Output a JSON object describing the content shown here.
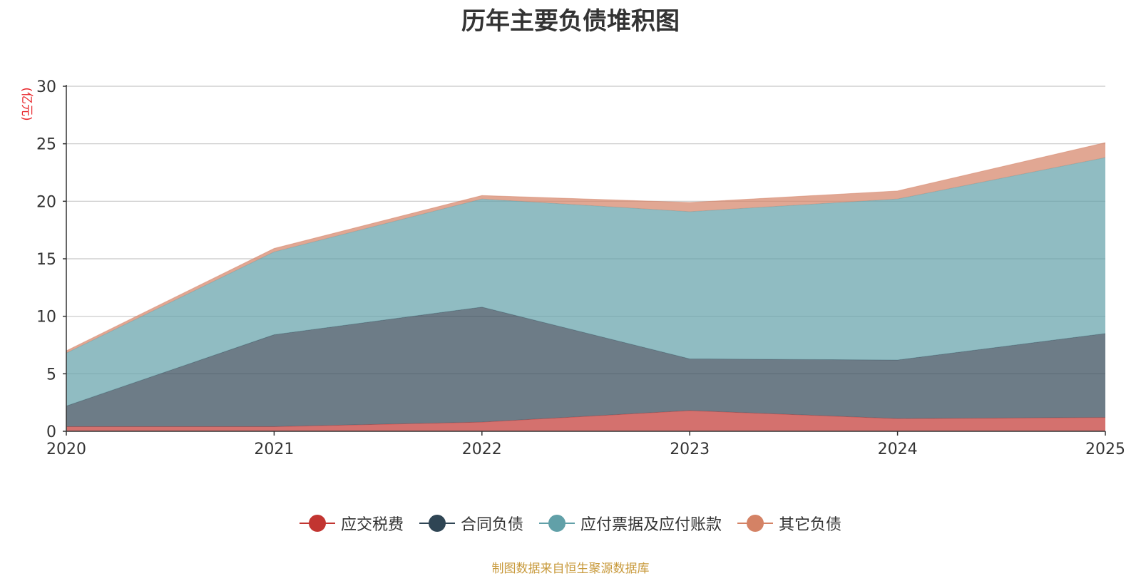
{
  "chart_data": {
    "type": "area",
    "stacked": true,
    "title": "历年主要负债堆积图",
    "ylabel": "(亿元)",
    "xlabel": "",
    "categories": [
      "2020",
      "2021",
      "2022",
      "2023",
      "2024",
      "2025"
    ],
    "ylim": [
      0,
      30
    ],
    "yticks": [
      0,
      5,
      10,
      15,
      20,
      25,
      30
    ],
    "grid": true,
    "legend_position": "bottom",
    "series": [
      {
        "name": "应交税费",
        "color": "#c23531",
        "values": [
          0.4,
          0.4,
          0.8,
          1.8,
          1.1,
          1.2
        ]
      },
      {
        "name": "合同负债",
        "color": "#2f4554",
        "values": [
          1.8,
          8.0,
          10.0,
          4.5,
          5.1,
          7.3
        ]
      },
      {
        "name": "应付票据及应付账款",
        "color": "#61a0a8",
        "values": [
          4.6,
          7.2,
          9.4,
          12.8,
          14.0,
          15.3
        ]
      },
      {
        "name": "其它负债",
        "color": "#d48265",
        "values": [
          0.2,
          0.3,
          0.3,
          0.8,
          0.7,
          1.3
        ]
      }
    ]
  },
  "source": "制图数据来自恒生聚源数据库"
}
